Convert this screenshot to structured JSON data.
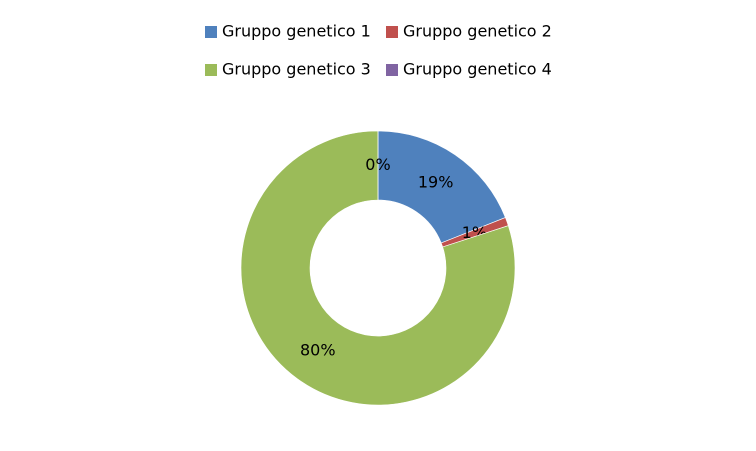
{
  "chart_data": {
    "type": "donut",
    "categories": [
      "Gruppo genetico 1",
      "Gruppo genetico 2",
      "Gruppo genetico 3",
      "Gruppo genetico 4"
    ],
    "values": [
      19,
      1,
      80,
      0
    ],
    "value_labels": [
      "19%",
      "1%",
      "80%",
      "0%"
    ],
    "colors": [
      "#4f81bd",
      "#c0504d",
      "#9bbb59",
      "#8064a2"
    ],
    "legend": "top"
  }
}
